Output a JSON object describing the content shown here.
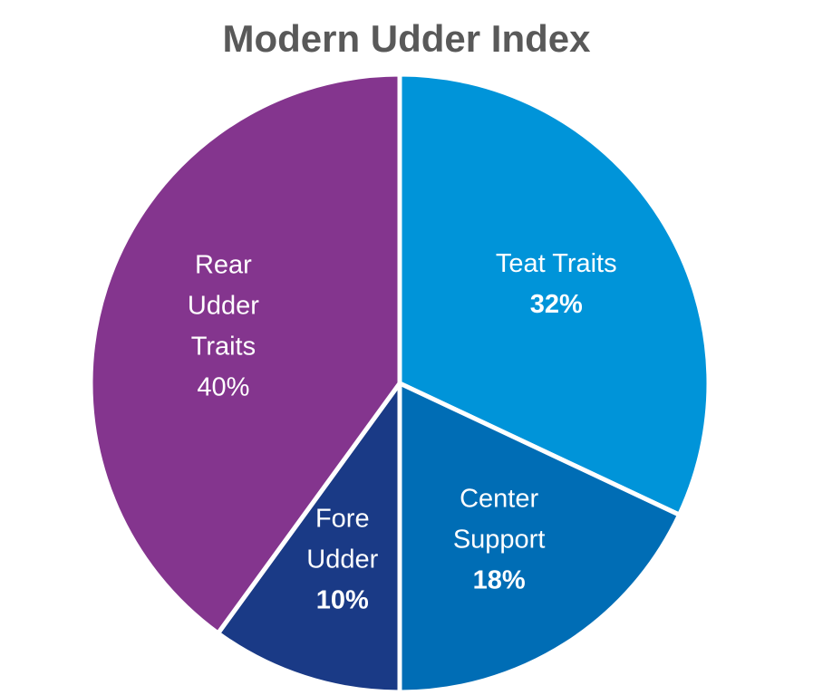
{
  "chart_data": {
    "type": "pie",
    "title": "Modern Udder Index",
    "slices": [
      {
        "label_lines": [
          "Teat Traits"
        ],
        "value_label": "32%",
        "value": 32,
        "color": "#0094D9",
        "pct_bold": true
      },
      {
        "label_lines": [
          "Center",
          "Support"
        ],
        "value_label": "18%",
        "value": 18,
        "color": "#006DB5",
        "pct_bold": true
      },
      {
        "label_lines": [
          "Fore",
          "Udder"
        ],
        "value_label": "10%",
        "value": 10,
        "color": "#1A3A86",
        "pct_bold": true
      },
      {
        "label_lines": [
          "Rear",
          "Udder",
          "Traits"
        ],
        "value_label": "40%",
        "value": 40,
        "color": "#84358E",
        "pct_bold": false
      }
    ]
  }
}
